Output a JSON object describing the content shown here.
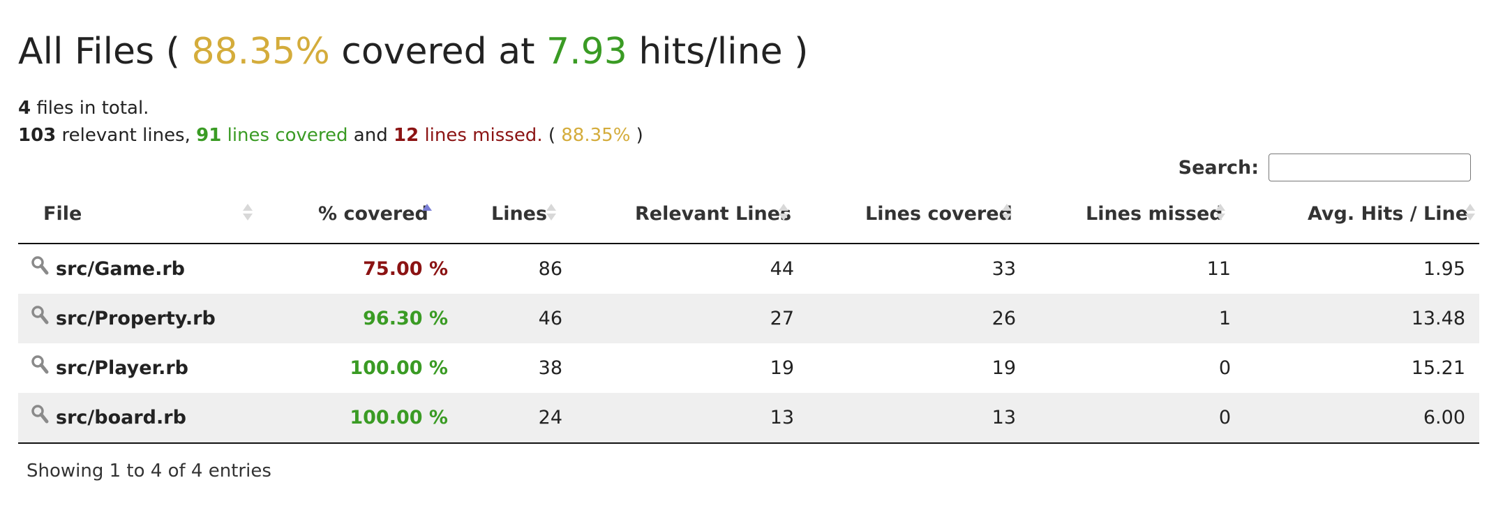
{
  "header": {
    "title_prefix": "All Files (",
    "covered_percent": "88.35%",
    "covered_at_text": "covered at",
    "hits_value": "7.93",
    "title_suffix": "hits/line )"
  },
  "summary": {
    "files_count": "4",
    "files_text": "files in total.",
    "relevant_lines": "103",
    "relevant_text": "relevant lines,",
    "lines_covered_count": "91",
    "lines_covered_text": "lines covered",
    "and_text": "and",
    "lines_missed_count": "12",
    "lines_missed_text": "lines missed.",
    "paren_open": "(",
    "percent": "88.35%",
    "paren_close": ")"
  },
  "search": {
    "label": "Search:",
    "value": "",
    "placeholder": ""
  },
  "table": {
    "columns": {
      "file": "File",
      "covered": "% covered",
      "lines": "Lines",
      "relevant": "Relevant Lines",
      "lines_covered": "Lines covered",
      "lines_missed": "Lines missed",
      "avg_hits": "Avg. Hits / Line"
    },
    "sort_column": "% covered",
    "sort_direction": "ascending",
    "rows": [
      {
        "file": "src/Game.rb",
        "covered": "75.00 %",
        "covered_color": "#8b1313",
        "lines": "86",
        "relevant": "44",
        "lines_covered": "33",
        "lines_missed": "11",
        "avg_hits": "1.95"
      },
      {
        "file": "src/Property.rb",
        "covered": "96.30 %",
        "covered_color": "#3a9b24",
        "lines": "46",
        "relevant": "27",
        "lines_covered": "26",
        "lines_missed": "1",
        "avg_hits": "13.48"
      },
      {
        "file": "src/Player.rb",
        "covered": "100.00 %",
        "covered_color": "#3a9b24",
        "lines": "38",
        "relevant": "19",
        "lines_covered": "19",
        "lines_missed": "0",
        "avg_hits": "15.21"
      },
      {
        "file": "src/board.rb",
        "covered": "100.00 %",
        "covered_color": "#3a9b24",
        "lines": "24",
        "relevant": "13",
        "lines_covered": "13",
        "lines_missed": "0",
        "avg_hits": "6.00"
      }
    ]
  },
  "footer": {
    "info": "Showing 1 to 4 of 4 entries"
  },
  "colors": {
    "accent_yellow": "#d4ac3b",
    "good_green": "#3a9b24",
    "bad_red": "#8b1313",
    "sort_active": "#7b7fd6"
  },
  "icons": {
    "file_row": "magnifier-icon"
  }
}
